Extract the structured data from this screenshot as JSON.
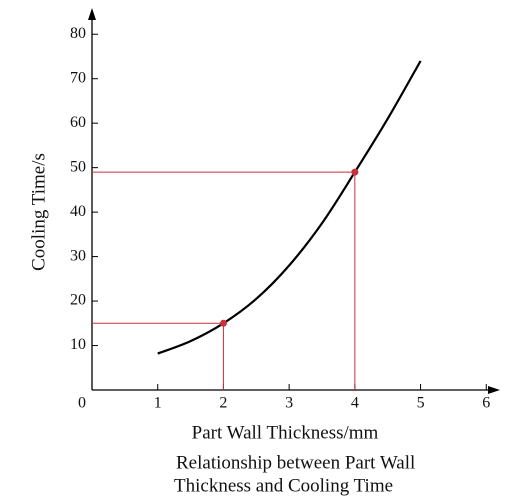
{
  "chart_data": {
    "type": "line",
    "x_label": "Part Wall Thickness/mm",
    "y_label": "Cooling Time/s",
    "caption": [
      "Relationship between Part Wall",
      "Thickness and Cooling Time"
    ],
    "x": [
      1,
      1.5,
      2,
      2.5,
      3,
      3.5,
      4,
      4.5,
      5
    ],
    "values": [
      8.2,
      11,
      15,
      20.5,
      28,
      37.5,
      49,
      61,
      74
    ],
    "color": "#000000",
    "markers": {
      "x": [
        2,
        4
      ],
      "values": [
        15,
        49
      ],
      "color": "#c8323c"
    },
    "xlim": [
      0,
      6.3
    ],
    "ylim": [
      0,
      85
    ],
    "xticks": [
      0,
      1,
      2,
      3,
      4,
      5,
      6
    ],
    "yticks": [
      10,
      20,
      30,
      40,
      50,
      60,
      70,
      80
    ]
  }
}
